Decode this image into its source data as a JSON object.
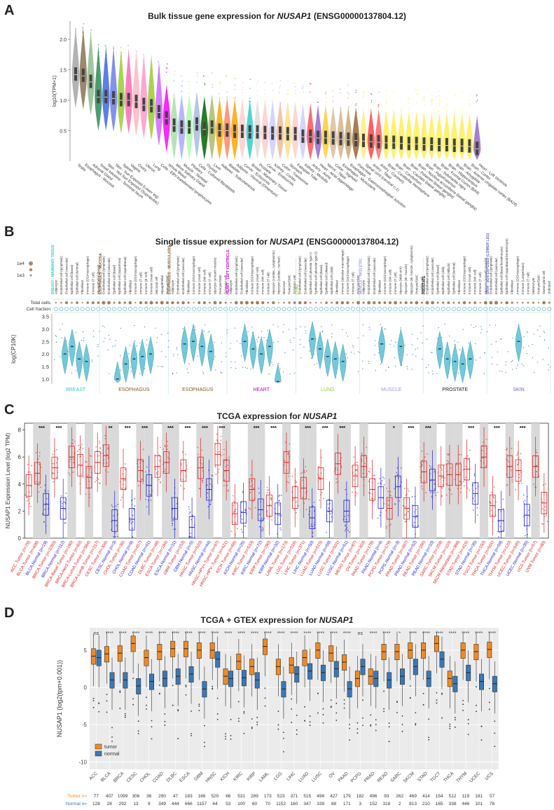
{
  "panels": {
    "a": {
      "letter": "A",
      "title_pre": "Bulk tissue gene expression for ",
      "gene": "NUSAP1",
      "title_post": " (ENSG00000137804.12)"
    },
    "b": {
      "letter": "B",
      "title_pre": "Single tissue expression for ",
      "gene": "NUSAP1",
      "title_post": " (ENSG00000137804.12)"
    },
    "c": {
      "letter": "C",
      "title_pre": "TCGA expression for ",
      "gene": "NUSAP1",
      "title_post": ""
    },
    "d": {
      "letter": "D",
      "title_pre": "TCGA + GTEX expression for ",
      "gene": "NUSAP1",
      "title_post": ""
    }
  },
  "chart_data": [
    {
      "id": "A",
      "type": "violin",
      "ylabel": "log10(TPM+1)",
      "yticks": [
        0.5,
        1.0,
        1.5,
        2.0
      ],
      "ylim": [
        0,
        2.3
      ],
      "categories": [
        "Testis",
        "Esophagus - Mucosa",
        "Adrenal Gland",
        "Small Intestine - Terminal Ileum",
        "Skin - Not Sun Exposed (Suprapubic)",
        "Skin - Sun Exposed (Lower leg)",
        "Spleen",
        "Vagina",
        "Ovary",
        "Uterus",
        "Lung",
        "Cells - EBV-transformed lymphocytes",
        "Whole Blood",
        "Minor Salivary Gland",
        "Muscle - Skeletal",
        "Pituitary",
        "Cells - Cultured fibroblasts",
        "Thyroid",
        "Liver",
        "Adipose - Subcutaneous",
        "Bladder",
        "Adipose - Visceral (Omentum)",
        "Cervix - Ectocervix",
        "Breast - Mammary Tissue",
        "Prostate",
        "Cervix - Endocervix",
        "Kidney - Cortex",
        "Colon - Transverse",
        "Stomach",
        "Fallopian Tube",
        "Kidney - Medulla",
        "Artery - Aorta",
        "Heart - Atrial Appendage",
        "Nerve - Tibial",
        "Colon - Sigmoid",
        "Esophagus - Muscularis",
        "Esophagus - Gastroesophageal Junction",
        "Pancreas",
        "Spinal cord (cervical c-1)",
        "Artery - Tibial",
        "Artery - Coronary",
        "Brain - Cerebellar Hemisphere",
        "Brain - Cerebellum",
        "Brain - Caudate (basal ganglia)",
        "Brain - Putamen (basal ganglia)",
        "Brain - Nucleus accumbens (basal ganglia)",
        "Brain - Hypothalamus",
        "Brain - Substantia nigra",
        "Brain - Frontal Cortex (BA9)",
        "Brain - Hippocampus",
        "Brain - Amygdala",
        "Brain - Anterior cingulate cortex (BA24)",
        "Brain - Cortex",
        "Heart - Left Ventricle"
      ],
      "medians": [
        1.42,
        1.4,
        1.3,
        1.05,
        1.05,
        1.03,
        1.0,
        1.0,
        0.97,
        0.92,
        0.9,
        0.8,
        0.7,
        0.58,
        0.55,
        0.55,
        0.6,
        0.52,
        0.55,
        0.5,
        0.5,
        0.48,
        0.48,
        0.47,
        0.47,
        0.46,
        0.45,
        0.45,
        0.44,
        0.44,
        0.4,
        0.4,
        0.38,
        0.38,
        0.37,
        0.36,
        0.35,
        0.34,
        0.33,
        0.32,
        0.31,
        0.3,
        0.3,
        0.29,
        0.28,
        0.28,
        0.27,
        0.27,
        0.26,
        0.26,
        0.25,
        0.25,
        0.24,
        0.2
      ],
      "colors": [
        "#a6a6a6",
        "#8b7355",
        "#8fbc8f",
        "#2e8b57",
        "#4169e1",
        "#6a7fe8",
        "#9acd32",
        "#ff69b4",
        "#ffb6c1",
        "#ff99cc",
        "#9acd32",
        "#cc66ff",
        "#ff00ff",
        "#aaddaa",
        "#aaaaff",
        "#aaffaa",
        "#aabbdd",
        "#006400",
        "#aabb66",
        "#ffa500",
        "#ff8866",
        "#ffa500",
        "#ffcccc",
        "#33cccc",
        "#dddddd",
        "#ffcccc",
        "#ccccff",
        "#eebb99",
        "#ffdd88",
        "#ffcccc",
        "#ccccff",
        "#ff5555",
        "#9966cc",
        "#ffcc33",
        "#ddbb99",
        "#d2b48c",
        "#c8a878",
        "#996633",
        "#ffee77",
        "#ff4444",
        "#ff6666",
        "#ffee55",
        "#ffee55",
        "#ffee55",
        "#ffee55",
        "#ffee55",
        "#ffee55",
        "#ffee55",
        "#ffee55",
        "#ffee55",
        "#ffee55",
        "#ffee55",
        "#ffee55",
        "#9966cc"
      ]
    },
    {
      "id": "B",
      "type": "violin",
      "ylabel": "log(CP10K)",
      "yticks": [
        1.0,
        1.5,
        2.0,
        2.5,
        3.0,
        3.5
      ],
      "ylim": [
        0.8,
        3.6
      ],
      "size_legend": [
        "1e4",
        "1e3"
      ],
      "row_labels": [
        "Total cells",
        "Cell fraction"
      ],
      "tissues": [
        {
          "name": "BREAST",
          "header": "BREAST - MAMMARY TISSUE",
          "color": "#33cccc",
          "cells": [
            "Adipocyte",
            "Endothelial cell (lymphatic)",
            "Endothelial cell (vascular)",
            "Epithelial cell (basal)",
            "Epithelial cell (luminal)",
            "Fibroblast",
            "Immune (DC/macrophage)",
            "Immune (T cell)",
            "Myoepithelial (basal)"
          ],
          "medians": [
            2.0,
            2.3,
            1.8,
            1.7
          ]
        },
        {
          "name": "ESOPHAGUS",
          "header": "ESOPHAGUS - MUCOSA",
          "color": "#8b5a2b",
          "cells": [
            "Endothelial cell (lymphatic)",
            "Endothelial cell (vascular)",
            "Epithelial cell (basal)",
            "Epithelial cell (squamous)",
            "Epithelial cell (suprabasal)",
            "Fibroblast",
            "Immune (DC/macrophage)",
            "Immune (T cell)",
            "Immune (B cell)",
            "Immune (mast cell)",
            "Mucosal cell",
            "Myoepithelial",
            "Pericyte/SMC"
          ],
          "medians": [
            1.0,
            1.6,
            1.8,
            1.9,
            2.0
          ]
        },
        {
          "name": "ESOPHAGUS",
          "header": "ESOPHAGUS - MUSCULARIS",
          "color": "#8b5a2b",
          "cells": [
            "Adipocyte",
            "Endothelial cell (lymphatic)",
            "Endothelial cell (vascular)",
            "Fibroblast",
            "Immune (DC/macrophage)",
            "Immune (mast cell)",
            "Immune (NK cell)",
            "Immune (T cell)",
            "Myocyte (smooth muscle)",
            "Pericyte/SMC",
            "Schwann cell"
          ],
          "medians": [
            2.4,
            2.5,
            2.3,
            2.1
          ]
        },
        {
          "name": "HEART",
          "header": "HEART - LEFT VENTRICLE",
          "color": "#cc00cc",
          "cells": [
            "Adipocyte",
            "Endothelial cell (lymphatic)",
            "Endothelial cell (vascular)",
            "Fibroblast",
            "Immune (DC/macrophage)",
            "Immune (mast cell)",
            "Immune (NK cell)",
            "Immune (T cell)",
            "Myocyte (cardiac, cytoplasmic)",
            "Myocyte (cardiac, nuclear)",
            "Neuronal",
            "Pericyte/SMC",
            "Schwann cell"
          ],
          "medians": [
            2.5,
            2.2,
            2.0,
            2.3,
            0.9
          ]
        },
        {
          "name": "LUNG",
          "header": "LUNG",
          "color": "#99cc33",
          "cells": [
            "Endothelial cell (lymphatic)",
            "Endothelial cell (vascular)",
            "Epithelial cell (alveolar type I)",
            "Epithelial cell (alveolar type II)",
            "Epithelial cell (basal)",
            "Epithelial cell (ciliated)",
            "Epithelial cell (club)",
            "Fibroblast",
            "Immune (alveolar macrophage)",
            "Immune (DC/macrophage)",
            "Immune (T cell)",
            "Pericyte/SMC"
          ],
          "medians": [
            2.6,
            2.2,
            1.9,
            1.8,
            1.7
          ]
        },
        {
          "name": "MUSCLE",
          "header": "MUSCLE - SKELETAL",
          "color": "#9999ff",
          "cells": [
            "Adipocyte",
            "Endothelial cell (lymphatic)",
            "Endothelial cell (vascular)",
            "Fibroblast",
            "Immune (DC/macrophage)",
            "Immune (NK cell)",
            "Immune (T cell)",
            "Myocyte (NMJ-rich)",
            "Myocyte (sk. muscle)",
            "Myocyte (sk. muscle, cytoplasmic)",
            "Pericyte/SMC",
            "Satellite cell"
          ],
          "medians": [
            2.4,
            2.3
          ]
        },
        {
          "name": "PROSTATE",
          "header": "PROSTATE",
          "color": "#222222",
          "cells": [
            "Endothelial cell (lymphatic)",
            "Endothelial cell (vascular)",
            "Epithelial cell (basal)",
            "Epithelial cell (club)",
            "Epithelial cell (Hillock)",
            "Epithelial cell (luminal)",
            "Fibroblast",
            "Immune (DC/macrophage)",
            "Immune (mast cell)",
            "Immune (NK cell)",
            "Immune (T cell)",
            "Myocyte (smooth muscle)"
          ],
          "medians": [
            2.2,
            1.8,
            1.7,
            1.6,
            1.8
          ]
        },
        {
          "name": "SKIN",
          "header": "SKIN - SUN EXPOSED (LOWER LEG)",
          "color": "#6666cc",
          "cells": [
            "Endothelial cell (lymphatic)",
            "Endothelial cell (vascular)",
            "Epithelial cell (basal keratinocyte)",
            "Epithelial cell (suprabasal keratinocyte)",
            "Fibroblast",
            "Immune (DC/macrophage)",
            "Immune (Langerhans)",
            "Immune (T cell)",
            "Melanocyte",
            "Pericyte/SMC",
            "Sweat gland cell",
            "Unknown"
          ],
          "medians": [
            2.5
          ]
        }
      ]
    },
    {
      "id": "C",
      "type": "box",
      "ylabel": "NUSAP1 Expression Level (log2 TPM)",
      "yticks": [
        0,
        2,
        4,
        6,
        8
      ],
      "ylim": [
        0,
        8.5
      ],
      "categories": [
        "ACC.Tumor (n=79)",
        "BLCA.Tumor (n=408)",
        "BLCA.Normal (n=19)",
        "BRCA.Tumor (n=1093)",
        "BRCA.Normal (n=112)",
        "BRCA-Basal.Tumor (n=190)",
        "BRCA-Her2.Tumor (n=82)",
        "BRCA-LumA.Tumor (n=564)",
        "BRCA-LumB.Tumor (n=217)",
        "CESC.Tumor (n=304)",
        "CESC.Normal (n=3)",
        "CHOL.Tumor (n=36)",
        "CHOL.Normal (n=9)",
        "COAD.Tumor (n=457)",
        "COAD.Normal (n=41)",
        "DLBC.Tumor (n=48)",
        "ESCA.Tumor (n=184)",
        "ESCA.Normal (n=11)",
        "GBM.Tumor (n=153)",
        "GBM.Normal (n=5)",
        "HNSC.Tumor (n=520)",
        "HNSC.Normal (n=44)",
        "HNSC-HPV+.Tumor (n=97)",
        "HNSC-HPV-.Tumor (n=421)",
        "KICH.Tumor (n=66)",
        "KICH.Normal (n=25)",
        "KIRC.Tumor (n=533)",
        "KIRC.Normal (n=72)",
        "KIRP.Tumor (n=290)",
        "KIRP.Normal (n=32)",
        "LAML.Tumor (n=173)",
        "LGG.Tumor (n=516)",
        "LIHC.Tumor (n=371)",
        "LIHC.Normal (n=50)",
        "LUAD.Tumor (n=515)",
        "LUAD.Normal (n=59)",
        "LUSC.Tumor (n=501)",
        "LUSC.Normal (n=51)",
        "MESO.Tumor (n=87)",
        "OV.Tumor (n=303)",
        "PAAD.Tumor (n=178)",
        "PAAD.Normal (n=4)",
        "PCPG.Tumor (n=179)",
        "PCPG.Normal (n=3)",
        "PRAD.Tumor (n=497)",
        "PRAD.Normal (n=52)",
        "READ.Tumor (n=166)",
        "READ.Normal (n=10)",
        "SARC.Tumor (n=259)",
        "SKCM.Tumor (n=103)",
        "SKCM.Metastasis (n=368)",
        "STAD.Tumor (n=415)",
        "STAD.Normal (n=35)",
        "TGCT.Tumor (n=150)",
        "THCA.Tumor (n=501)",
        "THCA.Normal (n=59)",
        "THYM.Tumor (n=120)",
        "UCEC.Tumor (n=545)",
        "UCEC.Normal (n=35)",
        "UCS.Tumor (n=57)",
        "UVM.Tumor (n=80)"
      ],
      "medians": [
        3.9,
        4.8,
        2.5,
        5.2,
        2.2,
        6.0,
        5.4,
        4.5,
        5.6,
        6.1,
        1.3,
        4.4,
        1.4,
        5.0,
        3.9,
        5.3,
        5.6,
        2.2,
        5.0,
        0.8,
        5.2,
        3.6,
        6.2,
        5.0,
        1.8,
        1.9,
        3.6,
        2.1,
        2.4,
        1.8,
        5.6,
        3.0,
        3.7,
        1.5,
        4.4,
        2.0,
        5.5,
        2.0,
        4.6,
        5.3,
        3.6,
        3.0,
        2.2,
        3.8,
        2.2,
        1.6,
        4.9,
        4.3,
        4.6,
        4.7,
        4.7,
        5.1,
        3.3,
        6.0,
        2.4,
        1.3,
        5.3,
        5.0,
        1.7,
        5.3,
        2.6
      ],
      "significance": [
        "",
        "***",
        "",
        "***",
        "",
        "",
        "",
        "",
        "",
        "**",
        "",
        "***",
        "",
        "***",
        "",
        "",
        "***",
        "",
        "***",
        "",
        "***",
        "",
        "***",
        "",
        "",
        "",
        "***",
        "",
        "***",
        "",
        "",
        "",
        "***",
        "",
        "***",
        "",
        "***",
        "",
        "",
        "",
        "",
        "",
        "*",
        "",
        "***",
        "",
        "***",
        "",
        "",
        "",
        "",
        "***",
        "",
        "",
        "***",
        "",
        "",
        "***",
        "",
        "",
        ""
      ],
      "tumor_color": "#e02020",
      "normal_color": "#2020e0"
    },
    {
      "id": "D",
      "type": "box",
      "ylabel": "NUSAP1 (log2(tpm+0.001))",
      "yticks": [
        -10,
        -5,
        0,
        5
      ],
      "ylim": [
        -11,
        8
      ],
      "categories": [
        "ACC",
        "BLCA",
        "BRCA",
        "CESC",
        "CHOL",
        "COAD",
        "DLBC",
        "ESCA",
        "GBM",
        "HNSC",
        "KICH",
        "KIRC",
        "KIRP",
        "LAML",
        "LGG",
        "LIHC",
        "LUAD",
        "LUSC",
        "OV",
        "PAAD",
        "PCPG",
        "PRAD",
        "READ",
        "SARC",
        "SKCM",
        "STAD",
        "TGCT",
        "THCA",
        "THYM",
        "UCEC",
        "UCS"
      ],
      "significance": [
        "ns",
        "****",
        "****",
        "****",
        "****",
        "****",
        "****",
        "****",
        "****",
        "****",
        "****",
        "****",
        "****",
        "****",
        "****",
        "****",
        "****",
        "****",
        "****",
        "****",
        "ns",
        "****",
        "****",
        "*",
        "****",
        "****",
        "****",
        "****",
        "****",
        "****",
        "****"
      ],
      "tumor_median": [
        4.2,
        4.5,
        4.6,
        5.9,
        4.0,
        4.8,
        5.2,
        5.2,
        5.0,
        5.0,
        1.5,
        3.5,
        2.8,
        5.5,
        2.8,
        3.0,
        4.0,
        5.0,
        4.6,
        3.4,
        1.2,
        1.5,
        4.8,
        4.8,
        5.0,
        5.0,
        5.9,
        1.2,
        5.0,
        4.8,
        5.1
      ],
      "normal_median": [
        4.0,
        1.0,
        1.0,
        0.2,
        0.8,
        1.2,
        1.5,
        1.8,
        -0.2,
        3.8,
        1.2,
        1.3,
        1.0,
        null,
        -0.2,
        1.8,
        2.2,
        2.0,
        2.5,
        -0.2,
        2.8,
        1.2,
        1.0,
        1.5,
        2.8,
        1.2,
        3.8,
        0.5,
        2.0,
        0.8,
        0.5
      ],
      "tumor_n": [
        "77",
        "407",
        "1099",
        "306",
        "36",
        "290",
        "47",
        "183",
        "166",
        "520",
        "66",
        "531",
        "289",
        "173",
        "523",
        "371",
        "515",
        "498",
        "427",
        "179",
        "182",
        "496",
        "93",
        "262",
        "469",
        "414",
        "154",
        "512",
        "119",
        "181",
        "57"
      ],
      "normal_n": [
        "128",
        "28",
        "292",
        "13",
        "9",
        "349",
        "444",
        "666",
        "1157",
        "44",
        "53",
        "100",
        "60",
        "70",
        "1152",
        "160",
        "347",
        "339",
        "88",
        "171",
        "3",
        "152",
        "318",
        "2",
        "813",
        "210",
        "165",
        "338",
        "446",
        "101",
        "78"
      ],
      "row_label_tumor": "Tumor n=",
      "row_label_normal": "Normal n=",
      "legend": [
        "tumor",
        "normal"
      ],
      "tumor_color": "#f08a24",
      "normal_color": "#3a78b5"
    }
  ]
}
